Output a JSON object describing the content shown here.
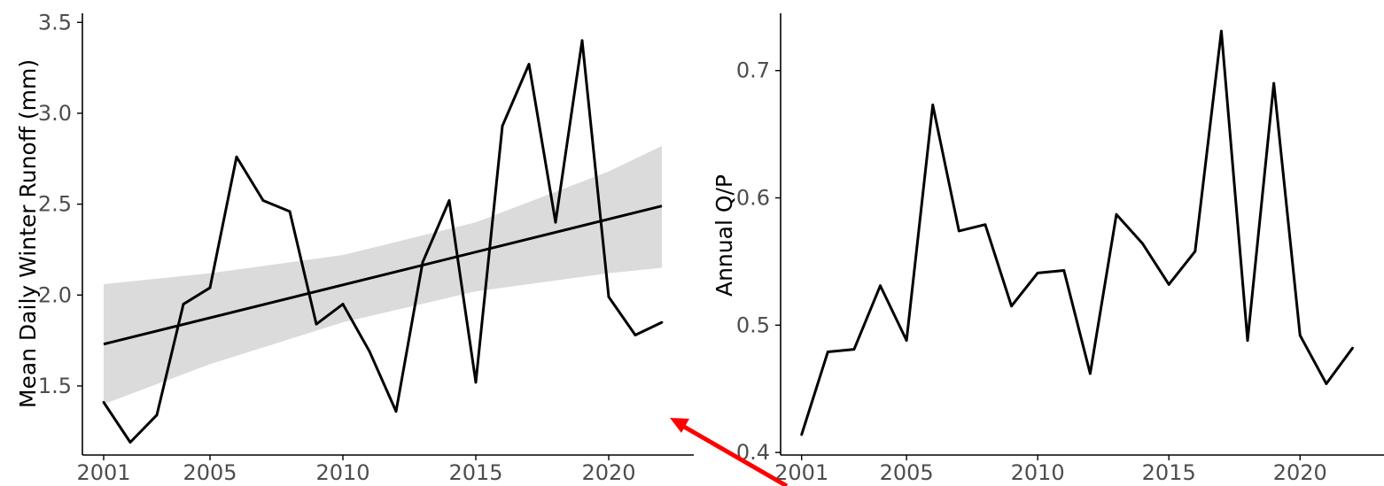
{
  "colors": {
    "line": "#000000",
    "band": "#d9d9d9",
    "arrow": "#ff0000",
    "tick_text": "#4d4d4d"
  },
  "chart_data": [
    {
      "type": "line",
      "title": "",
      "xlabel": "",
      "ylabel": "Mean Daily Winter Runoff (mm)",
      "xlim": [
        2000.2,
        2023.2
      ],
      "ylim": [
        1.12,
        3.55
      ],
      "xticks": [
        2001,
        2005,
        2010,
        2015,
        2020
      ],
      "xtick_labels": [
        "2001",
        "2005",
        "2010",
        "2015",
        "2020"
      ],
      "yticks": [
        1.5,
        2.0,
        2.5,
        3.0,
        3.5
      ],
      "ytick_labels": [
        "1.5",
        "2.0",
        "2.5",
        "3.0",
        "3.5"
      ],
      "grid": false,
      "x": [
        2001,
        2002,
        2003,
        2004,
        2005,
        2006,
        2007,
        2008,
        2009,
        2010,
        2011,
        2012,
        2013,
        2014,
        2015,
        2016,
        2017,
        2018,
        2019,
        2020,
        2021,
        2022
      ],
      "values": [
        1.41,
        1.19,
        1.34,
        1.95,
        2.04,
        2.76,
        2.52,
        2.46,
        1.84,
        1.95,
        1.69,
        1.36,
        2.18,
        2.52,
        1.52,
        2.93,
        3.27,
        2.4,
        3.4,
        1.99,
        1.78,
        1.85
      ],
      "trend": {
        "x": [
          2001,
          2022
        ],
        "values": [
          1.73,
          2.49
        ]
      },
      "confidence_band": {
        "x": [
          2001,
          2005,
          2010,
          2015,
          2020,
          2022
        ],
        "lower": [
          1.4,
          1.62,
          1.85,
          2.02,
          2.12,
          2.15
        ],
        "upper": [
          2.06,
          2.12,
          2.22,
          2.4,
          2.68,
          2.82
        ]
      }
    },
    {
      "type": "line",
      "title": "",
      "xlabel": "",
      "ylabel": "Annual Q/P",
      "xlim": [
        2000.2,
        2023.2
      ],
      "ylim": [
        0.398,
        0.745
      ],
      "xticks": [
        2001,
        2005,
        2010,
        2015,
        2020
      ],
      "xtick_labels": [
        "2001",
        "2005",
        "2010",
        "2015",
        "2020"
      ],
      "yticks": [
        0.4,
        0.5,
        0.6,
        0.7
      ],
      "ytick_labels": [
        "0.4",
        "0.5",
        "0.6",
        "0.7"
      ],
      "grid": false,
      "x": [
        2001,
        2002,
        2003,
        2004,
        2005,
        2006,
        2007,
        2008,
        2009,
        2010,
        2011,
        2012,
        2013,
        2014,
        2015,
        2016,
        2017,
        2018,
        2019,
        2020,
        2021,
        2022
      ],
      "values": [
        0.414,
        0.479,
        0.481,
        0.531,
        0.488,
        0.673,
        0.574,
        0.579,
        0.515,
        0.541,
        0.543,
        0.462,
        0.587,
        0.564,
        0.532,
        0.558,
        0.731,
        0.488,
        0.69,
        0.492,
        0.454,
        0.482
      ]
    }
  ]
}
